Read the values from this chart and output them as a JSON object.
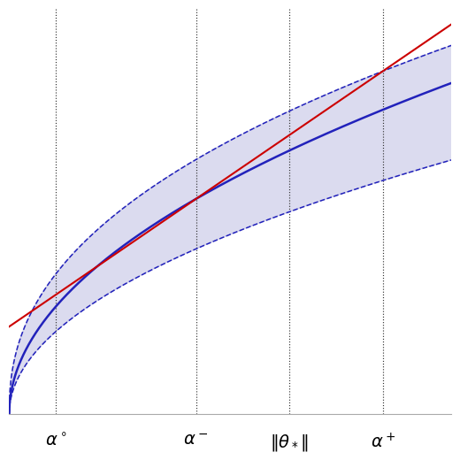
{
  "x_min": 0.0,
  "x_max": 5.2,
  "y_min": 0.0,
  "y_max": 4.8,
  "alpha_circ": 0.55,
  "alpha_minus": 2.2,
  "theta_star": 3.3,
  "alpha_plus": 4.4,
  "blue_color": "#2222bb",
  "fill_color": "#8888cc",
  "fill_alpha": 0.3,
  "red_color": "#cc0000",
  "vline_color": "#333333",
  "label_alpha_circ": "$\\alpha^\\circ$",
  "label_alpha_minus": "$\\alpha^-$",
  "label_theta_star": "$\\|\\theta_*\\|$",
  "label_alpha_plus": "$\\alpha^+$",
  "figsize": [
    5.2,
    5.2
  ],
  "dpi": 100
}
